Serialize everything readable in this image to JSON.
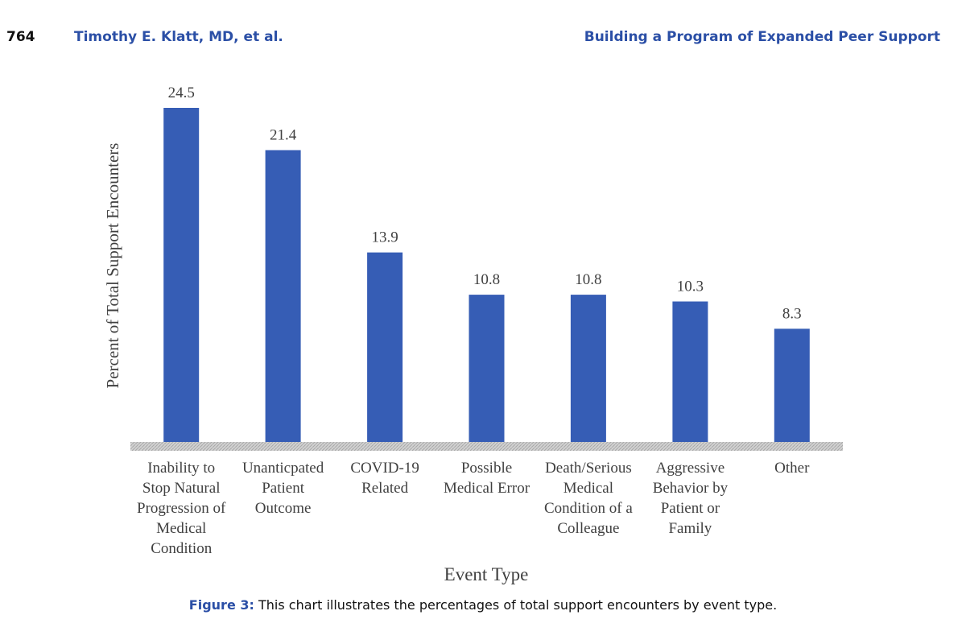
{
  "header": {
    "page_number": "764",
    "authors": "Timothy E. Klatt, MD, et al.",
    "article_title": "Building a Program of Expanded Peer Support"
  },
  "caption": {
    "label": "Figure 3:",
    "text": "This chart illustrates the percentages of total support encounters by event type."
  },
  "colors": {
    "bar": "#365DB5",
    "baseline": "#cccccc",
    "header_accent": "#2b4fa6"
  },
  "chart_data": {
    "type": "bar",
    "xlabel": "Event Type",
    "ylabel": "Percent of Total Support Encounters",
    "ylim": [
      0,
      24.5
    ],
    "grid": false,
    "categories": [
      [
        "Inability to",
        "Stop Natural",
        "Progression of",
        "Medical",
        "Condition"
      ],
      [
        "Unanticpated",
        "Patient",
        "Outcome"
      ],
      [
        "COVID-19",
        "Related"
      ],
      [
        "Possible",
        "Medical Error"
      ],
      [
        "Death/Serious",
        "Medical",
        "Condition of a",
        "Colleague"
      ],
      [
        "Aggressive",
        "Behavior by",
        "Patient or",
        "Family"
      ],
      [
        "Other"
      ]
    ],
    "values": [
      24.5,
      21.4,
      13.9,
      10.8,
      10.8,
      10.3,
      8.3
    ],
    "value_labels": [
      "24.5",
      "21.4",
      "13.9",
      "10.8",
      "10.8",
      "10.3",
      "8.3"
    ]
  }
}
